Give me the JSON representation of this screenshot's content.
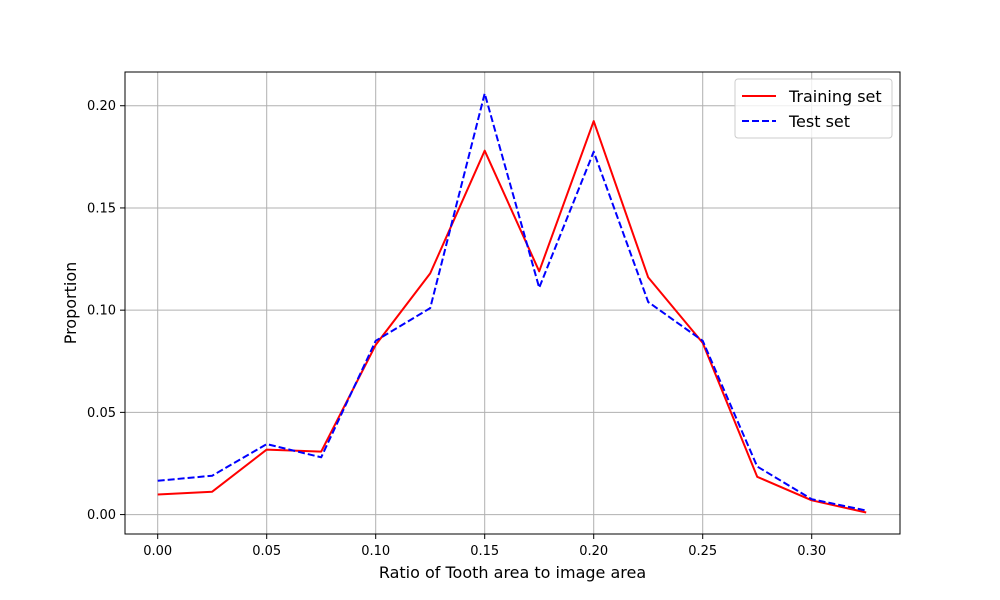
{
  "chart_data": {
    "type": "line",
    "title": "",
    "xlabel": "Ratio of Tooth area to image area",
    "ylabel": "Proportion",
    "xlim": [
      -0.015,
      0.3405
    ],
    "ylim": [
      -0.0095,
      0.2165
    ],
    "grid": true,
    "legend_position": "top-right",
    "x": [
      0.0,
      0.025,
      0.05,
      0.075,
      0.1,
      0.125,
      0.15,
      0.175,
      0.2,
      0.225,
      0.25,
      0.275,
      0.3,
      0.325
    ],
    "xticks": [
      "0.00",
      "0.05",
      "0.10",
      "0.15",
      "0.20",
      "0.25",
      "0.30"
    ],
    "yticks": [
      "0.00",
      "0.05",
      "0.10",
      "0.15",
      "0.20"
    ],
    "series": [
      {
        "name": "Training set",
        "color": "#ff0000",
        "style": "solid",
        "values": [
          0.0098,
          0.0112,
          0.0318,
          0.0308,
          0.083,
          0.118,
          0.178,
          0.119,
          0.1925,
          0.116,
          0.084,
          0.0185,
          0.007,
          0.001
        ]
      },
      {
        "name": "Test set",
        "color": "#0000ff",
        "style": "dashed",
        "values": [
          0.0165,
          0.019,
          0.0345,
          0.028,
          0.085,
          0.101,
          0.206,
          0.111,
          0.1775,
          0.104,
          0.085,
          0.0235,
          0.0075,
          0.002
        ]
      }
    ]
  }
}
